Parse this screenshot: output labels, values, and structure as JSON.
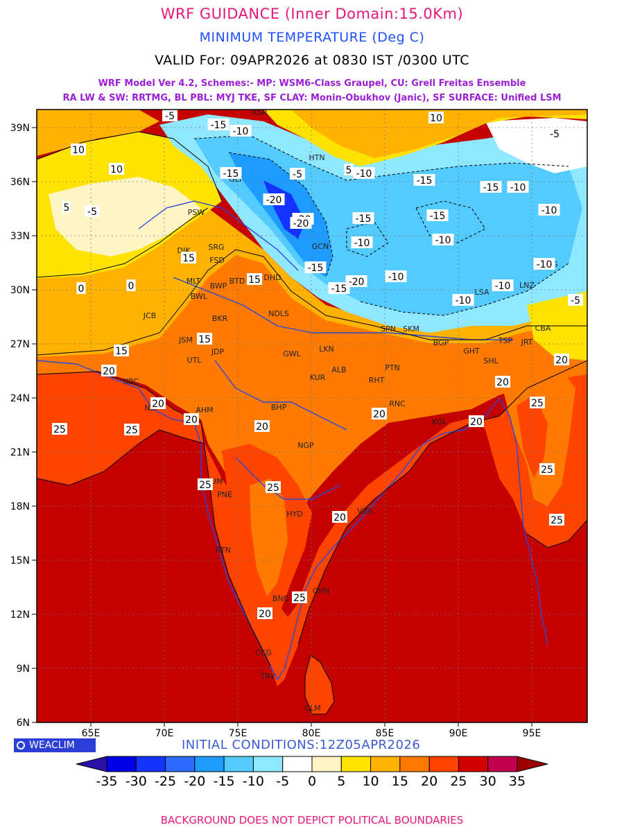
{
  "header": {
    "title": "WRF GUIDANCE (Inner Domain:15.0Km)",
    "variable": "MINIMUM TEMPERATURE (Deg C)",
    "valid": "VALID For: 09APR2026 at 0830 IST /0300 UTC",
    "model_line1": "WRF Model Ver 4.2, Schemes:- MP: WSM6-Class Graupel, CU: Grell Freitas Ensemble",
    "model_line2": "RA LW & SW: RRTMG, BL PBL: MYJ TKE, SF CLAY: Monin-Obukhov (Janic), SF SURFACE: Unified LSM"
  },
  "map": {
    "lat_labels": [
      "39N",
      "36N",
      "33N",
      "30N",
      "27N",
      "24N",
      "21N",
      "18N",
      "15N",
      "12N",
      "9N",
      "6N"
    ],
    "lon_labels": [
      "65E",
      "70E",
      "75E",
      "80E",
      "85E",
      "90E",
      "95E"
    ],
    "cities": [
      "KSR",
      "HTN",
      "GLT",
      "PSW",
      "SRG",
      "DIK",
      "FSD",
      "MLT",
      "BWP",
      "BTD",
      "BWL",
      "DHD",
      "NDLS",
      "JCB",
      "BKR",
      "JSM",
      "JDP",
      "UTL",
      "KRC",
      "NLY",
      "AHM",
      "GWL",
      "LKN",
      "ALB",
      "KUR",
      "RHT",
      "PTN",
      "BHP",
      "RNC",
      "KOL",
      "NGP",
      "MUM",
      "PNE",
      "HYD",
      "VZG",
      "RTN",
      "CHN",
      "BNG",
      "CCG",
      "TRV",
      "CLM",
      "SKM",
      "GCN",
      "LSA",
      "LNZ",
      "PNG",
      "JRT",
      "CBA",
      "TSP",
      "GHT",
      "SHL",
      "BGP",
      "SPN"
    ],
    "contour_labels": [
      "-5",
      "-15",
      "-10",
      "10",
      "10",
      "5",
      "5",
      "-15",
      "-20",
      "-20",
      "-15",
      "-10",
      "-5",
      "-15",
      "-10",
      "-20",
      "-15",
      "-10",
      "-10",
      "-15",
      "10",
      "-10",
      "-15",
      "-5",
      "-20",
      "-15",
      "15",
      "-10",
      "-10",
      "15",
      "15",
      "15",
      "20",
      "20",
      "20",
      "25",
      "25",
      "20",
      "20",
      "25",
      "20",
      "20",
      "25",
      "25",
      "20",
      "25",
      "20",
      "25",
      "20",
      "25",
      "0",
      "0",
      "-5",
      "-5",
      "-10",
      "-10"
    ]
  },
  "colorbar": {
    "labels": [
      "-35",
      "-30",
      "-25",
      "-20",
      "-15",
      "-10",
      "-5",
      "0",
      "5",
      "10",
      "15",
      "20",
      "25",
      "30",
      "35"
    ],
    "colors": [
      "#2a0fa8",
      "#0000e6",
      "#1433ff",
      "#2b6bff",
      "#1e9bff",
      "#53cbff",
      "#8fe8ff",
      "#ffffff",
      "#fff4c4",
      "#ffe300",
      "#ffb300",
      "#ff7b00",
      "#ff4200",
      "#d30000",
      "#c2004e",
      "#9c0000"
    ]
  },
  "footer": {
    "logo_text": "WEACLIM",
    "initial_conditions": "INITIAL CONDITIONS:12Z05APR2026",
    "disclaimer": "BACKGROUND DOES NOT DEPICT POLITICAL BOUNDARIES"
  }
}
